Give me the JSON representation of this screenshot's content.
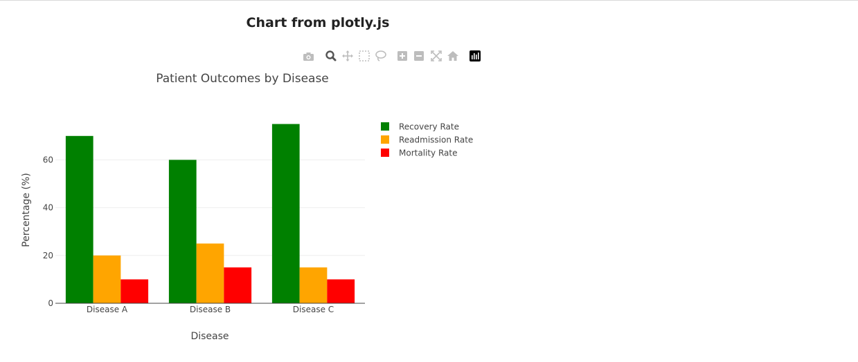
{
  "page": {
    "heading": "Chart from plotly.js"
  },
  "modebar": {
    "buttons": [
      {
        "name": "camera-icon",
        "label": "Download plot as a png"
      },
      {
        "name": "zoom-icon",
        "label": "Zoom",
        "active": true
      },
      {
        "name": "pan-icon",
        "label": "Pan"
      },
      {
        "name": "box-select-icon",
        "label": "Box Select"
      },
      {
        "name": "lasso-select-icon",
        "label": "Lasso Select"
      },
      {
        "name": "zoom-in-icon",
        "label": "Zoom in"
      },
      {
        "name": "zoom-out-icon",
        "label": "Zoom out"
      },
      {
        "name": "autoscale-icon",
        "label": "Autoscale"
      },
      {
        "name": "reset-axes-icon",
        "label": "Reset axes"
      },
      {
        "name": "plotly-logo-icon",
        "label": "Produced with Plotly"
      }
    ]
  },
  "chart_data": {
    "type": "bar",
    "title": "Patient Outcomes by Disease",
    "xlabel": "Disease",
    "ylabel": "Percentage (%)",
    "categories": [
      "Disease A",
      "Disease B",
      "Disease C"
    ],
    "series": [
      {
        "name": "Recovery Rate",
        "values": [
          70,
          60,
          75
        ],
        "color": "#008000"
      },
      {
        "name": "Readmission Rate",
        "values": [
          20,
          25,
          15
        ],
        "color": "#FFA500"
      },
      {
        "name": "Mortality Rate",
        "values": [
          10,
          15,
          10
        ],
        "color": "#FF0000"
      }
    ],
    "ylim": [
      0,
      78.9
    ],
    "yticks": [
      0,
      20,
      40,
      60
    ],
    "grid": true,
    "legend_position": "top-right"
  }
}
